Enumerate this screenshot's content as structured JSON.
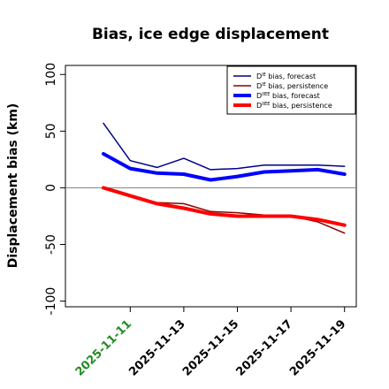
{
  "chart_data": {
    "type": "line",
    "title": "Bias, ice edge displacement",
    "xlabel": "",
    "ylabel": "Displacement bias (km)",
    "ylim": [
      -105,
      108
    ],
    "yticks": [
      -100,
      -50,
      0,
      50,
      100
    ],
    "x": [
      "2025-11-10",
      "2025-11-11",
      "2025-11-12",
      "2025-11-13",
      "2025-11-14",
      "2025-11-15",
      "2025-11-16",
      "2025-11-17",
      "2025-11-18",
      "2025-11-19"
    ],
    "xticks": [
      "2025-11-11",
      "2025-11-13",
      "2025-11-15",
      "2025-11-17",
      "2025-11-19"
    ],
    "xtick_colors": [
      "#228b22",
      "#000000",
      "#000000",
      "#000000",
      "#000000"
    ],
    "reference_line": 0,
    "grid": false,
    "legend_position": "top-right",
    "series": [
      {
        "name": "D^IE bias, forecast",
        "sup": "IE",
        "label_rest": " bias, forecast",
        "color": "#00008b",
        "width": 1.5,
        "values": [
          57,
          24,
          18,
          26,
          16,
          17,
          20,
          20,
          20,
          19
        ]
      },
      {
        "name": "D^IE bias, persistence",
        "sup": "IE",
        "label_rest": " bias, persistence",
        "color": "#8b0000",
        "width": 1.5,
        "values": [
          0,
          -7,
          -13,
          -14,
          -21,
          -22,
          -24,
          -25,
          -30,
          -40
        ]
      },
      {
        "name": "D^IIEE bias, forecast",
        "sup": "IIEE",
        "label_rest": " bias, forecast",
        "color": "#0000ff",
        "width": 4,
        "values": [
          30,
          17,
          13,
          12,
          7,
          10,
          14,
          15,
          16,
          12
        ]
      },
      {
        "name": "D^IIEE bias, persistence",
        "sup": "IIEE",
        "label_rest": " bias, persistence",
        "color": "#ff0000",
        "width": 4,
        "values": [
          0,
          -7,
          -14,
          -18,
          -23,
          -25,
          -25,
          -25,
          -28,
          -33
        ]
      }
    ]
  }
}
